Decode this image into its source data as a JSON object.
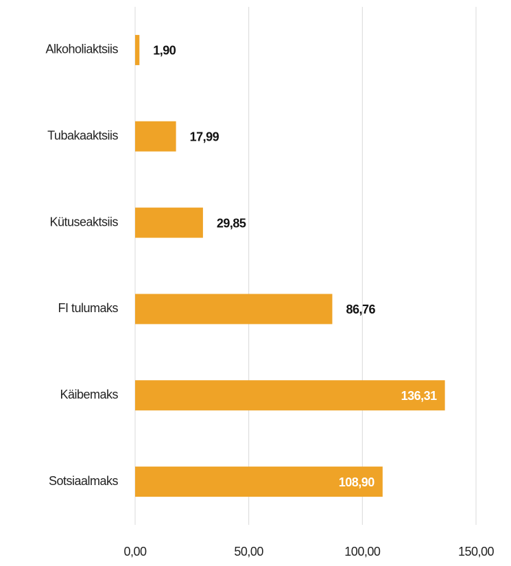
{
  "chart_data": {
    "type": "hbar",
    "categories": [
      "Alkoholiaktsiis",
      "Tubakaaktsiis",
      "Kütuseaktsiis",
      "FI tulumaks",
      "Käibemaks",
      "Sotsiaalmaks"
    ],
    "values": [
      1.9,
      17.99,
      29.85,
      86.76,
      136.31,
      108.9
    ],
    "value_labels": [
      "1,90",
      "17,99",
      "29,85",
      "86,76",
      "136,31",
      "108,90"
    ],
    "color": "#efa327",
    "xlim": [
      0,
      150
    ],
    "xticks": [
      {
        "value": 0,
        "label": "0,00"
      },
      {
        "value": 50,
        "label": "50,00"
      },
      {
        "value": 100,
        "label": "100,00"
      },
      {
        "value": 150,
        "label": "150,00"
      }
    ],
    "grid": true
  }
}
